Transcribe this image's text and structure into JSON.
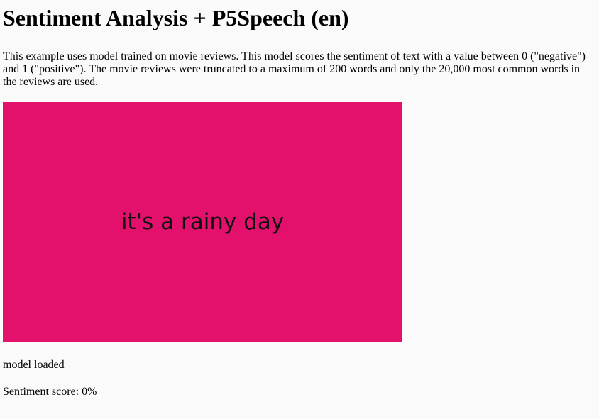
{
  "title": "Sentiment Analysis + P5Speech (en)",
  "description": "This example uses model trained on movie reviews. This model scores the sentiment of text with a value between 0 (\"negative\") and 1 (\"positive\"). The movie reviews were truncated to a maximum of 200 words and only the 20,000 most common words in the reviews are used.",
  "canvas": {
    "text": "it's a rainy day",
    "background_color": "#e3116b"
  },
  "status": "model loaded",
  "score_text": "Sentiment score: 0%"
}
